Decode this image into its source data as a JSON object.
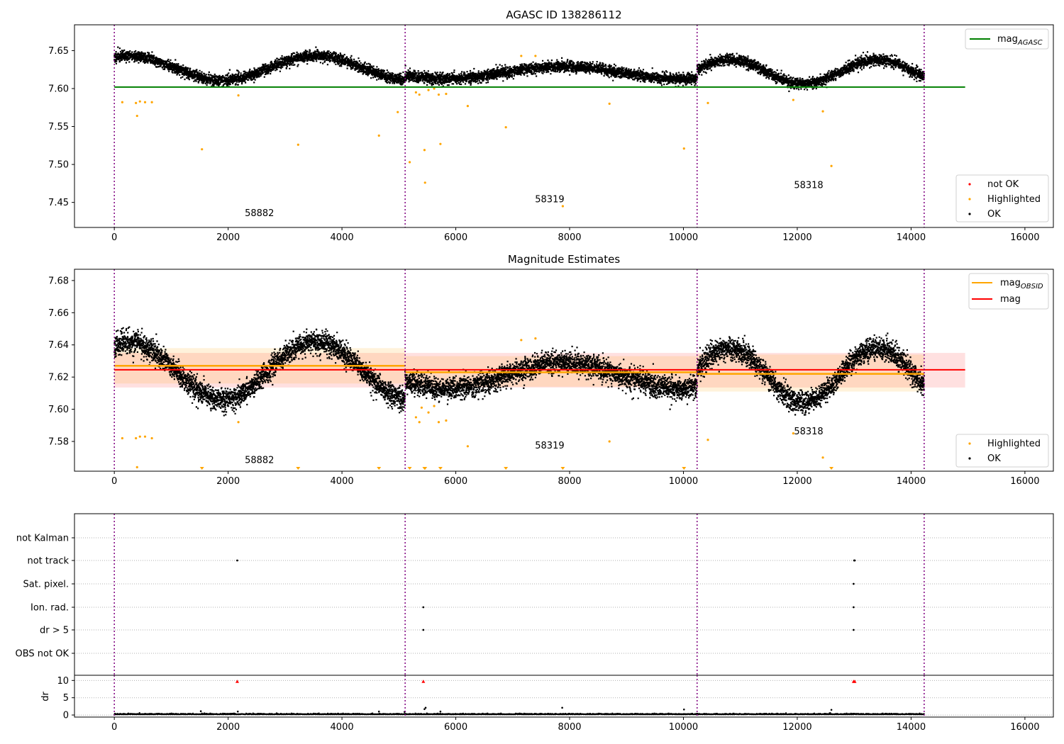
{
  "colors": {
    "ok": "#000000",
    "highlighted": "#ffa500",
    "not_ok": "#ff0000",
    "agasc_line": "#008000",
    "obsid_line": "#ffa500",
    "mag_line": "#ff0000",
    "obs_boundary": "#800080",
    "grid": "#b0b0b0"
  },
  "chart_data": [
    {
      "type": "scatter",
      "title": "AGASC ID 138286112",
      "xlim": [
        -700,
        16500
      ],
      "ylim": [
        7.417,
        7.684
      ],
      "xticks": [
        "0",
        "2000",
        "4000",
        "6000",
        "8000",
        "10000",
        "12000",
        "14000",
        "16000"
      ],
      "yticks": [
        "7.45",
        "7.50",
        "7.55",
        "7.60",
        "7.65"
      ],
      "obs_boundaries": [
        0,
        5110,
        10240,
        14230
      ],
      "obsids": [
        {
          "label": "58882",
          "x": 2550,
          "y": 7.432
        },
        {
          "label": "58319",
          "x": 7650,
          "y": 7.45
        },
        {
          "label": "58318",
          "x": 12200,
          "y": 7.469
        }
      ],
      "reference_line": {
        "name": "mag_AGASC",
        "y": 7.602,
        "x": [
          0,
          14950
        ]
      },
      "legend_lines": [
        {
          "label": "mag",
          "sub": "AGASC"
        }
      ],
      "legend_markers": [
        "not OK",
        "Highlighted",
        "OK"
      ],
      "series_ok_model": {
        "segments": [
          {
            "x": [
              0,
              5110
            ],
            "mean": 7.627,
            "amp": 0.016,
            "period": 3300,
            "phase": 1.1
          },
          {
            "x": [
              5110,
              10240
            ],
            "mean": 7.621,
            "amp": 0.008,
            "period": 4100,
            "phase": 3.6
          },
          {
            "x": [
              10240,
              14230
            ],
            "mean": 7.622,
            "amp": 0.016,
            "period": 2600,
            "phase": 0.2
          }
        ],
        "noise": 0.005
      },
      "series_highlighted": [
        [
          140,
          7.582
        ],
        [
          380,
          7.581
        ],
        [
          400,
          7.564
        ],
        [
          450,
          7.583
        ],
        [
          540,
          7.582
        ],
        [
          660,
          7.582
        ],
        [
          1540,
          7.52
        ],
        [
          2180,
          7.591
        ],
        [
          3230,
          7.526
        ],
        [
          4650,
          7.538
        ],
        [
          4980,
          7.569
        ],
        [
          5190,
          7.503
        ],
        [
          5300,
          7.595
        ],
        [
          5360,
          7.592
        ],
        [
          5450,
          7.519
        ],
        [
          5460,
          7.476
        ],
        [
          5520,
          7.598
        ],
        [
          5620,
          7.6
        ],
        [
          5700,
          7.592
        ],
        [
          5730,
          7.527
        ],
        [
          5830,
          7.593
        ],
        [
          6210,
          7.577
        ],
        [
          6880,
          7.549
        ],
        [
          7150,
          7.643
        ],
        [
          7400,
          7.643
        ],
        [
          7880,
          7.445
        ],
        [
          8700,
          7.58
        ],
        [
          10010,
          7.521
        ],
        [
          10430,
          7.581
        ],
        [
          11930,
          7.585
        ],
        [
          12450,
          7.57
        ],
        [
          12600,
          7.498
        ]
      ]
    },
    {
      "type": "scatter",
      "title": "Magnitude Estimates",
      "xlim": [
        -700,
        16500
      ],
      "ylim": [
        7.5615,
        7.687
      ],
      "xticks": [
        "0",
        "2000",
        "4000",
        "6000",
        "8000",
        "10000",
        "12000",
        "14000",
        "16000"
      ],
      "yticks": [
        "7.58",
        "7.60",
        "7.62",
        "7.64",
        "7.66",
        "7.68"
      ],
      "obs_boundaries": [
        0,
        5110,
        10240,
        14230
      ],
      "obsids": [
        {
          "label": "58882",
          "x": 2550,
          "y": 7.5665
        },
        {
          "label": "58319",
          "x": 7650,
          "y": 7.5755
        },
        {
          "label": "58318",
          "x": 12200,
          "y": 7.5845
        }
      ],
      "mag_line": {
        "name": "mag",
        "y": 7.6245,
        "band": [
          7.6135,
          7.635
        ],
        "x": [
          0,
          14950
        ]
      },
      "obsid_lines": [
        {
          "x": [
            0,
            5110
          ],
          "y": 7.627,
          "band": [
            7.616,
            7.638
          ]
        },
        {
          "x": [
            5110,
            10240
          ],
          "y": 7.623,
          "band": [
            7.614,
            7.633
          ]
        },
        {
          "x": [
            10240,
            14230
          ],
          "y": 7.622,
          "band": [
            7.611,
            7.634
          ]
        }
      ],
      "legend_lines": [
        {
          "label": "mag",
          "sub": "OBSID"
        },
        {
          "label": "mag",
          "sub": ""
        }
      ],
      "legend_markers": [
        "Highlighted",
        "OK"
      ],
      "series_ok_model": {
        "segments": [
          {
            "x": [
              0,
              5110
            ],
            "mean": 7.624,
            "amp": 0.018,
            "period": 3300,
            "phase": 1.1
          },
          {
            "x": [
              5110,
              10240
            ],
            "mean": 7.621,
            "amp": 0.008,
            "period": 4100,
            "phase": 3.6
          },
          {
            "x": [
              10240,
              14230
            ],
            "mean": 7.621,
            "amp": 0.017,
            "period": 2600,
            "phase": 0.2
          }
        ],
        "noise": 0.005
      },
      "series_highlighted": [
        [
          140,
          7.582
        ],
        [
          380,
          7.582
        ],
        [
          400,
          7.564
        ],
        [
          450,
          7.583
        ],
        [
          540,
          7.583
        ],
        [
          660,
          7.582
        ],
        [
          2180,
          7.592
        ],
        [
          5300,
          7.595
        ],
        [
          5360,
          7.592
        ],
        [
          5400,
          7.601
        ],
        [
          5520,
          7.598
        ],
        [
          5620,
          7.602
        ],
        [
          5700,
          7.592
        ],
        [
          5830,
          7.593
        ],
        [
          6210,
          7.577
        ],
        [
          7150,
          7.643
        ],
        [
          7400,
          7.644
        ],
        [
          8700,
          7.58
        ],
        [
          10430,
          7.581
        ],
        [
          11930,
          7.585
        ],
        [
          12450,
          7.57
        ]
      ],
      "out_of_range_markers": [
        1540,
        3230,
        4650,
        5190,
        5450,
        5460,
        5730,
        6880,
        7880,
        10010,
        12600
      ]
    },
    {
      "type": "scatter",
      "title": "",
      "xlim": [
        -700,
        16500
      ],
      "categories": [
        "not Kalman",
        "not track",
        "Sat. pixel.",
        "Ion. rad.",
        "dr > 5",
        "OBS not OK"
      ],
      "obs_boundaries": [
        0,
        5110,
        10240,
        14230
      ],
      "flag_points": [
        {
          "flag": "not track",
          "x": [
            2160,
            13000,
            13010
          ]
        },
        {
          "flag": "Sat. pixel.",
          "x": [
            12990
          ]
        },
        {
          "flag": "Ion. rad.",
          "x": [
            5430,
            12990
          ]
        },
        {
          "flag": "dr > 5",
          "x": [
            5430,
            12990
          ]
        }
      ]
    },
    {
      "type": "scatter",
      "title": "",
      "ylabel": "dr",
      "xlim": [
        -700,
        16500
      ],
      "ylim": [
        -0.6,
        11.5
      ],
      "xticks": [
        "0",
        "2000",
        "4000",
        "6000",
        "8000",
        "10000",
        "12000",
        "14000",
        "16000"
      ],
      "yticks": [
        "0",
        "5",
        "10"
      ],
      "obs_boundaries": [
        0,
        5110,
        10240,
        14230
      ],
      "series_ok_model": {
        "x": [
          0,
          14230
        ],
        "mean": 0.15,
        "noise": 0.12
      },
      "outliers": [
        [
          1520,
          1.1
        ],
        [
          2170,
          1.0
        ],
        [
          4650,
          1.0
        ],
        [
          5100,
          0.9
        ],
        [
          5450,
          1.7
        ],
        [
          5470,
          2.1
        ],
        [
          5730,
          1.0
        ],
        [
          7870,
          2.1
        ],
        [
          10010,
          1.6
        ],
        [
          12600,
          1.5
        ]
      ],
      "not_ok_markers": [
        [
          2160,
          9.7
        ],
        [
          5430,
          9.7
        ],
        [
          12990,
          9.7
        ],
        [
          13010,
          9.7
        ]
      ]
    }
  ]
}
